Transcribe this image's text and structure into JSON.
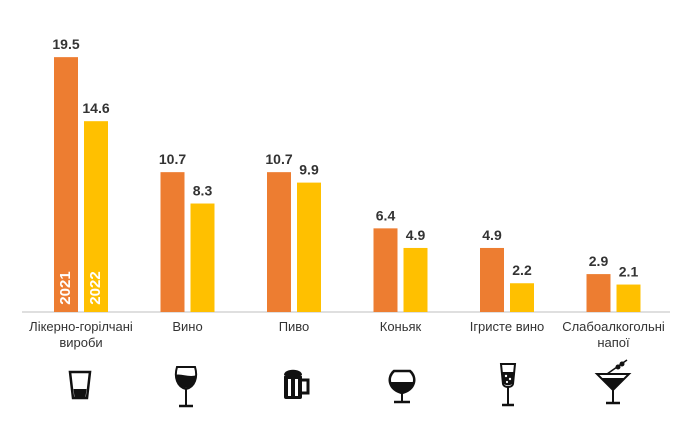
{
  "chart_data": {
    "type": "bar",
    "categories": [
      "Лікерно-горілчані вироби",
      "Вино",
      "Пиво",
      "Коньяк",
      "Ігристе вино",
      "Слабоалкогольні напої"
    ],
    "category_lines": [
      [
        "Лікерно-горілчані",
        "вироби"
      ],
      [
        "Вино"
      ],
      [
        "Пиво"
      ],
      [
        "Коньяк"
      ],
      [
        "Ігристе вино"
      ],
      [
        "Слабоалкогольні",
        "напої"
      ]
    ],
    "series": [
      {
        "name": "2021",
        "color": "#ED7D31",
        "values": [
          19.5,
          10.7,
          10.7,
          6.4,
          4.9,
          2.9
        ]
      },
      {
        "name": "2022",
        "color": "#FFC000",
        "values": [
          14.6,
          8.3,
          9.9,
          4.9,
          2.2,
          2.1
        ]
      }
    ],
    "value_labels": [
      [
        "19.5",
        "10.7",
        "10.7",
        "6.4",
        "4.9",
        "2.9"
      ],
      [
        "14.6",
        "8.3",
        "9.9",
        "4.9",
        "2.2",
        "2.1"
      ]
    ],
    "ylim": [
      0,
      21.5
    ],
    "grid": false,
    "legend": "inside first group bars (rotated)",
    "icons": [
      "shot-glass-icon",
      "wine-glass-icon",
      "beer-mug-icon",
      "cognac-glass-icon",
      "champagne-flute-icon",
      "cocktail-glass-icon"
    ]
  }
}
